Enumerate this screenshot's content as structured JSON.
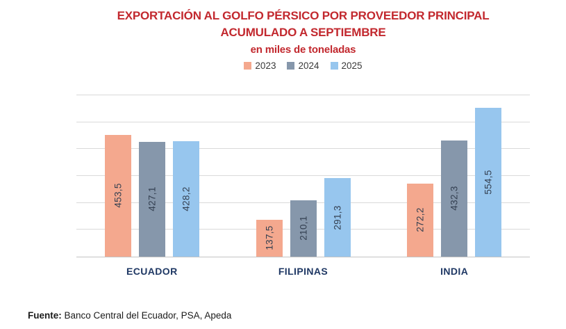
{
  "title": {
    "line1": "EXPORTACIÓN AL GOLFO PÉRSICO POR PROVEEDOR PRINCIPAL",
    "line2": "ACUMULADO A SEPTIEMBRE",
    "line3": "en miles de toneladas",
    "color": "#c2282e"
  },
  "chart_data": {
    "type": "bar",
    "categories": [
      "ECUADOR",
      "FILIPINAS",
      "INDIA"
    ],
    "series": [
      {
        "name": "2023",
        "color": "#f4a88e",
        "values": [
          453.5,
          137.5,
          272.2
        ],
        "labels": [
          "453,5",
          "137,5",
          "272,2"
        ]
      },
      {
        "name": "2024",
        "color": "#8697ab",
        "values": [
          427.1,
          210.1,
          432.3
        ],
        "labels": [
          "427,1",
          "210,1",
          "432,3"
        ]
      },
      {
        "name": "2025",
        "color": "#97c6ee",
        "values": [
          428.2,
          291.3,
          554.5
        ],
        "labels": [
          "428,2",
          "291,3",
          "554,5"
        ]
      }
    ],
    "ylim": [
      0,
      600
    ],
    "gridline_interval": 100,
    "grid": true,
    "y_axis_labels_shown": false,
    "legend_position": "top",
    "value_label_style": "rotated-inside-bar",
    "category_label_color": "#1f3864",
    "value_label_color": "#333f50"
  },
  "footer": {
    "prefix": "Fuente:",
    "text": " Banco Central del Ecuador, PSA, Apeda"
  }
}
